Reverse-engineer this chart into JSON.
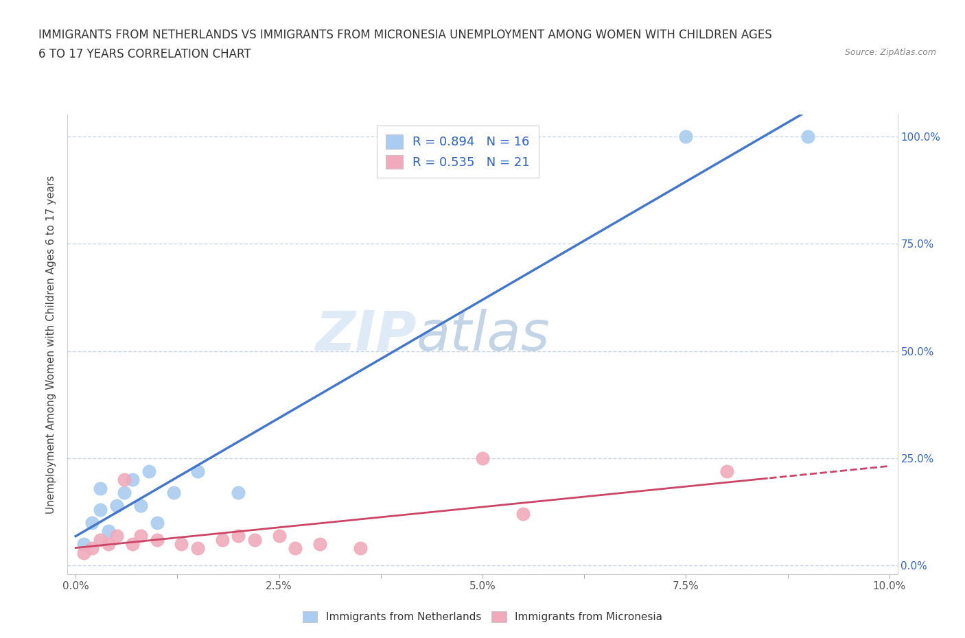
{
  "title_line1": "IMMIGRANTS FROM NETHERLANDS VS IMMIGRANTS FROM MICRONESIA UNEMPLOYMENT AMONG WOMEN WITH CHILDREN AGES",
  "title_line2": "6 TO 17 YEARS CORRELATION CHART",
  "source": "Source: ZipAtlas.com",
  "ylabel": "Unemployment Among Women with Children Ages 6 to 17 years",
  "watermark_zip": "ZIP",
  "watermark_atlas": "atlas",
  "legend_labels": [
    "Immigrants from Netherlands",
    "Immigrants from Micronesia"
  ],
  "netherlands_legend": "R = 0.894   N = 16",
  "micronesia_legend": "R = 0.535   N = 21",
  "netherlands_color": "#aaccf0",
  "micronesia_color": "#f0aabb",
  "netherlands_line_color": "#4477cc",
  "micronesia_line_color": "#cc4466",
  "background_color": "#ffffff",
  "grid_color": "#c8d8e8",
  "xlim": [
    -0.001,
    0.101
  ],
  "ylim": [
    -0.02,
    1.05
  ],
  "xtick_positions": [
    0.0,
    0.0125,
    0.025,
    0.0375,
    0.05,
    0.0625,
    0.075,
    0.0875,
    0.1
  ],
  "xtick_labels": [
    "0.0%",
    "",
    "2.5%",
    "",
    "5.0%",
    "",
    "7.5%",
    "",
    "10.0%"
  ],
  "ytick_positions": [
    0.0,
    0.25,
    0.5,
    0.75,
    1.0
  ],
  "ytick_labels_right": [
    "0.0%",
    "25.0%",
    "50.0%",
    "75.0%",
    "100.0%"
  ],
  "netherlands_x": [
    0.001,
    0.002,
    0.003,
    0.003,
    0.004,
    0.005,
    0.006,
    0.007,
    0.008,
    0.009,
    0.01,
    0.012,
    0.015,
    0.02,
    0.075,
    0.09
  ],
  "netherlands_y": [
    0.05,
    0.1,
    0.13,
    0.18,
    0.08,
    0.14,
    0.17,
    0.2,
    0.14,
    0.22,
    0.1,
    0.17,
    0.22,
    0.17,
    1.0,
    1.0
  ],
  "micronesia_x": [
    0.001,
    0.002,
    0.003,
    0.004,
    0.005,
    0.006,
    0.007,
    0.008,
    0.01,
    0.013,
    0.015,
    0.018,
    0.02,
    0.022,
    0.025,
    0.027,
    0.03,
    0.035,
    0.05,
    0.055,
    0.08
  ],
  "micronesia_y": [
    0.03,
    0.04,
    0.06,
    0.05,
    0.07,
    0.2,
    0.05,
    0.07,
    0.06,
    0.05,
    0.04,
    0.06,
    0.07,
    0.06,
    0.07,
    0.04,
    0.05,
    0.04,
    0.25,
    0.12,
    0.22
  ]
}
